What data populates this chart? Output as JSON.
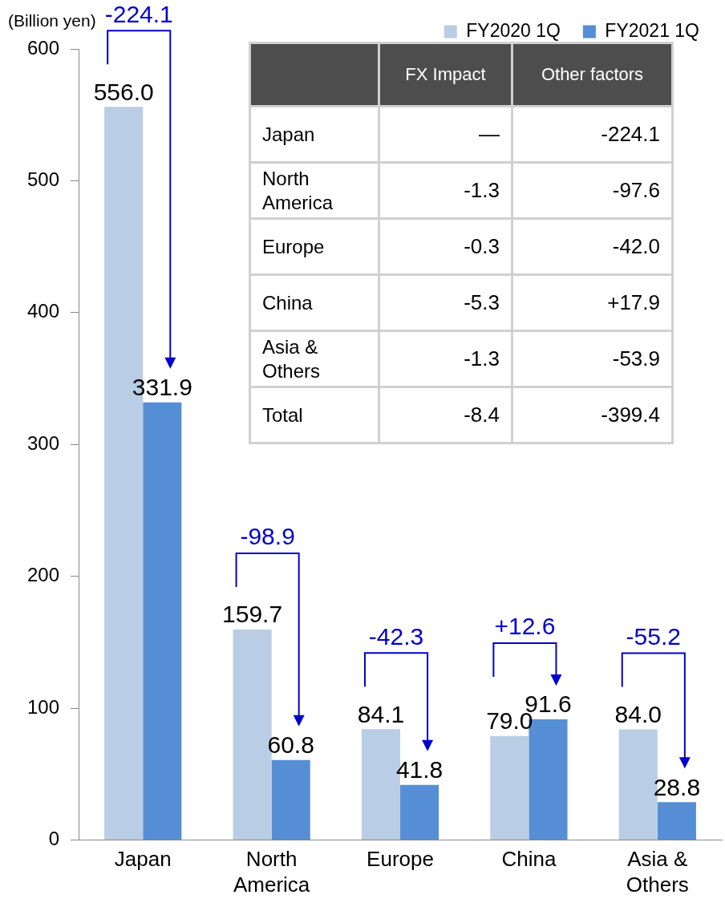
{
  "chart_data": {
    "type": "bar",
    "ylabel": "(Billion yen)",
    "categories": [
      "Japan",
      "North America",
      "Europe",
      "China",
      "Asia & Others"
    ],
    "series": [
      {
        "name": "FY2020 1Q",
        "color": "#b9cde5",
        "values": [
          556.0,
          159.7,
          84.1,
          79.0,
          84.0
        ],
        "value_labels": [
          "556.0",
          "159.7",
          "84.1",
          "79.0",
          "84.0"
        ]
      },
      {
        "name": "FY2021 1Q",
        "color": "#558ed5",
        "values": [
          331.9,
          60.8,
          41.8,
          91.6,
          28.8
        ],
        "value_labels": [
          "331.9",
          "60.8",
          "41.8",
          "91.6",
          "28.8"
        ]
      }
    ],
    "ylim": [
      0,
      600
    ],
    "yticks": [
      0,
      100,
      200,
      300,
      400,
      500,
      600
    ],
    "grid": false,
    "legend": "top",
    "annotations": [
      "-224.1",
      "-98.9",
      "-42.3",
      "+12.6",
      "-55.2",
      "FX Impact",
      "Other factors",
      "Japan",
      "—",
      "-224.1",
      "North America",
      "-1.3",
      "-97.6",
      "Europe",
      "-0.3",
      "-42.0",
      "China",
      "-5.3",
      "+17.9",
      "Asia & Others",
      "-1.3",
      "-53.9",
      "Total",
      "-8.4",
      "-399.4"
    ]
  }
}
